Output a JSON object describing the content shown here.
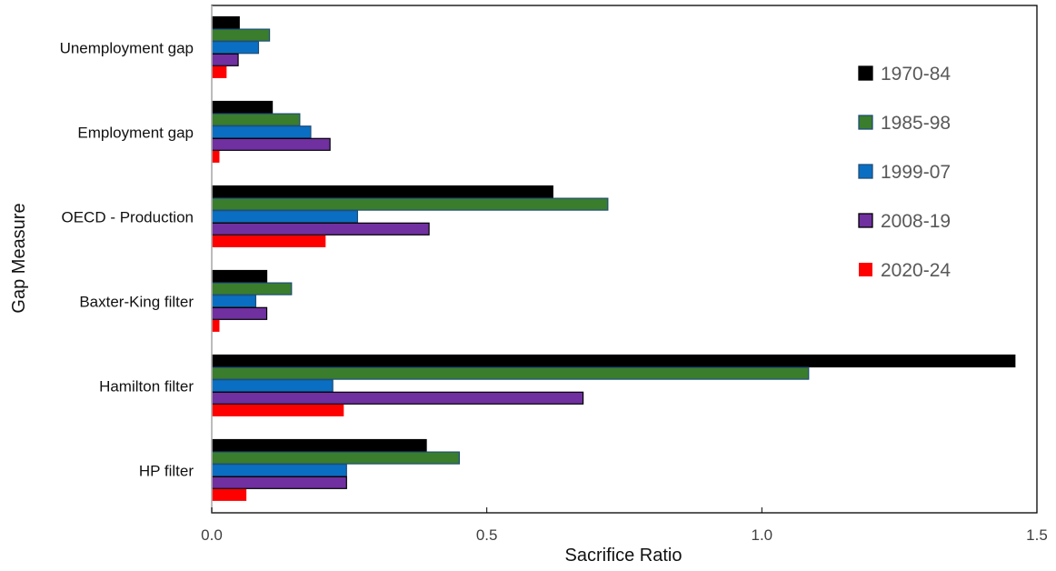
{
  "chart_data": {
    "type": "bar",
    "orientation": "horizontal",
    "title": "",
    "xlabel": "Sacrifice Ratio",
    "ylabel": "Gap Measure",
    "xlim": [
      0,
      1.5
    ],
    "x_ticks": [
      "0.0",
      "0.5",
      "1.0",
      "1.5"
    ],
    "x_tick_values": [
      0,
      0.5,
      1.0,
      1.5
    ],
    "grid": false,
    "legend_position": "right",
    "categories": [
      "Unemployment gap",
      "Employment gap",
      "OECD - Production",
      "Baxter-King filter",
      "Hamilton filter",
      "HP filter"
    ],
    "series": [
      {
        "name": "1970-84",
        "color": "#000000",
        "values": [
          0.05,
          0.11,
          0.62,
          0.1,
          1.46,
          0.39
        ]
      },
      {
        "name": "1985-98",
        "color": "#3a7d2c",
        "values": [
          0.105,
          0.16,
          0.72,
          0.145,
          1.085,
          0.45
        ]
      },
      {
        "name": "1999-07",
        "color": "#0a6fc2",
        "values": [
          0.085,
          0.18,
          0.265,
          0.08,
          0.22,
          0.245
        ]
      },
      {
        "name": "2008-19",
        "color": "#7030a0",
        "values": [
          0.048,
          0.215,
          0.395,
          0.1,
          0.675,
          0.245
        ]
      },
      {
        "name": "2020-24",
        "color": "#ff0000",
        "values": [
          0.027,
          0.014,
          0.207,
          0.014,
          0.24,
          0.063
        ]
      }
    ]
  }
}
